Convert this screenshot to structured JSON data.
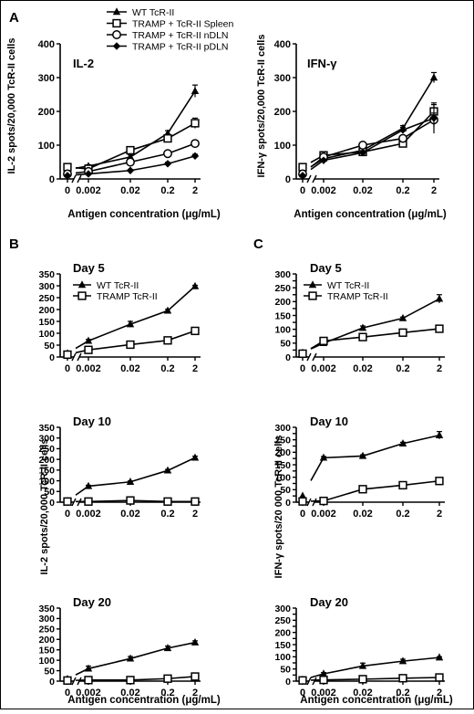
{
  "panel_letters": [
    "A",
    "B",
    "C"
  ],
  "figure_legends": {
    "A": [
      "WT TcR-II",
      "TRAMP + TcR-II Spleen",
      "TRAMP + TcR-II nDLN",
      "TRAMP + TcR-II pDLN"
    ],
    "BC": [
      "WT TcR-II",
      "TRAMP TcR-II"
    ]
  },
  "shared_ylabels": {
    "B": "IL-2 spots/20,000 TcR-II cells",
    "C": "IFN-γ spots/20 000 TcR-II cells"
  },
  "chart_data": [
    {
      "id": "A-IL2",
      "type": "line",
      "title": "IL-2",
      "xlabel": "Antigen concentration (μg/mL)",
      "ylabel": "IL-2 spots/20,000 TcR-II cells",
      "x_categories": [
        "0",
        "0.002",
        "0.02",
        "0.2",
        "2"
      ],
      "ylim": [
        0,
        400
      ],
      "yticks": [
        0,
        100,
        200,
        300,
        400
      ],
      "series": [
        {
          "name": "WT TcR-II",
          "marker": "triangle",
          "values": [
            28,
            38,
            65,
            135,
            260
          ],
          "errors": [
            0,
            4,
            6,
            8,
            18
          ]
        },
        {
          "name": "TRAMP + TcR-II Spleen",
          "marker": "square",
          "values": [
            35,
            30,
            85,
            120,
            165
          ],
          "errors": [
            0,
            4,
            8,
            10,
            15
          ]
        },
        {
          "name": "TRAMP + TcR-II nDLN",
          "marker": "circle",
          "values": [
            15,
            22,
            50,
            75,
            105
          ],
          "errors": [
            0,
            3,
            5,
            6,
            8
          ]
        },
        {
          "name": "TRAMP + TcR-II pDLN",
          "marker": "diamond",
          "values": [
            10,
            15,
            25,
            45,
            68
          ],
          "errors": [
            0,
            2,
            3,
            4,
            5
          ]
        }
      ]
    },
    {
      "id": "A-IFNg",
      "type": "line",
      "title": "IFN-γ",
      "xlabel": "Antigen concentration (μg/mL)",
      "ylabel": "IFN-γ spots/20,000 TcR-II cells",
      "x_categories": [
        "0",
        "0.002",
        "0.02",
        "0.2",
        "2"
      ],
      "ylim": [
        0,
        400
      ],
      "yticks": [
        0,
        100,
        200,
        300,
        400
      ],
      "series": [
        {
          "name": "WT TcR-II",
          "marker": "triangle",
          "values": [
            20,
            60,
            85,
            150,
            300
          ],
          "errors": [
            0,
            5,
            6,
            8,
            15
          ]
        },
        {
          "name": "TRAMP + TcR-II Spleen",
          "marker": "square",
          "values": [
            35,
            70,
            80,
            105,
            200
          ],
          "errors": [
            0,
            6,
            6,
            10,
            20
          ]
        },
        {
          "name": "TRAMP + TcR-II nDLN",
          "marker": "circle",
          "values": [
            15,
            65,
            100,
            120,
            175
          ],
          "errors": [
            0,
            5,
            6,
            8,
            20
          ]
        },
        {
          "name": "TRAMP + TcR-II pDLN",
          "marker": "diamond",
          "values": [
            10,
            55,
            78,
            145,
            180
          ],
          "errors": [
            0,
            4,
            6,
            8,
            45
          ]
        }
      ]
    },
    {
      "id": "B-day5",
      "type": "line",
      "title": "Day 5",
      "xlabel": "",
      "ylabel": "",
      "x_categories": [
        "0",
        "0.002",
        "0.02",
        "0.2",
        "2"
      ],
      "ylim": [
        0,
        350
      ],
      "yticks": [
        0,
        50,
        100,
        150,
        200,
        250,
        300,
        350
      ],
      "series": [
        {
          "name": "WT TcR-II",
          "marker": "triangle",
          "values": [
            15,
            68,
            138,
            195,
            298
          ],
          "errors": [
            0,
            6,
            12,
            6,
            4
          ]
        },
        {
          "name": "TRAMP TcR-II",
          "marker": "square",
          "values": [
            10,
            30,
            52,
            70,
            110
          ],
          "errors": [
            0,
            3,
            3,
            4,
            5
          ]
        }
      ]
    },
    {
      "id": "B-day10",
      "type": "line",
      "title": "Day 10",
      "xlabel": "",
      "ylabel": "",
      "x_categories": [
        "0",
        "0.002",
        "0.02",
        "0.2",
        "2"
      ],
      "ylim": [
        0,
        350
      ],
      "yticks": [
        0,
        50,
        100,
        150,
        200,
        250,
        300,
        350
      ],
      "series": [
        {
          "name": "WT TcR-II",
          "marker": "triangle",
          "values": [
            5,
            75,
            95,
            148,
            208
          ],
          "errors": [
            0,
            4,
            4,
            5,
            7
          ]
        },
        {
          "name": "TRAMP TcR-II",
          "marker": "square",
          "values": [
            3,
            3,
            8,
            3,
            3
          ],
          "errors": [
            0,
            1,
            3,
            1,
            1
          ]
        }
      ]
    },
    {
      "id": "B-day20",
      "type": "line",
      "title": "Day 20",
      "xlabel": "Antigen concentration (μg/mL)",
      "ylabel": "",
      "x_categories": [
        "0",
        "0.002",
        "0.02",
        "0.2",
        "2"
      ],
      "ylim": [
        0,
        350
      ],
      "yticks": [
        0,
        50,
        100,
        150,
        200,
        250,
        300,
        350
      ],
      "series": [
        {
          "name": "WT TcR-II",
          "marker": "triangle",
          "values": [
            10,
            60,
            108,
            158,
            185
          ],
          "errors": [
            0,
            12,
            10,
            10,
            8
          ]
        },
        {
          "name": "TRAMP TcR-II",
          "marker": "square",
          "values": [
            3,
            5,
            5,
            12,
            22
          ],
          "errors": [
            0,
            2,
            2,
            3,
            3
          ]
        }
      ]
    },
    {
      "id": "C-day5",
      "type": "line",
      "title": "Day 5",
      "xlabel": "",
      "ylabel": "",
      "x_categories": [
        "0",
        "0.002",
        "0.02",
        "0.2",
        "2"
      ],
      "ylim": [
        0,
        300
      ],
      "yticks": [
        0,
        25,
        50,
        75,
        100,
        125,
        150,
        175,
        200,
        225,
        250,
        275,
        300
      ],
      "series": [
        {
          "name": "WT TcR-II",
          "marker": "triangle",
          "values": [
            15,
            50,
            105,
            140,
            210
          ],
          "errors": [
            0,
            5,
            7,
            4,
            15
          ]
        },
        {
          "name": "TRAMP TcR-II",
          "marker": "square",
          "values": [
            12,
            58,
            72,
            88,
            102
          ],
          "errors": [
            0,
            8,
            10,
            5,
            10
          ]
        }
      ]
    },
    {
      "id": "C-day10",
      "type": "line",
      "title": "Day 10",
      "xlabel": "",
      "ylabel": "",
      "x_categories": [
        "0",
        "0.002",
        "0.02",
        "0.2",
        "2"
      ],
      "ylim": [
        0,
        300
      ],
      "yticks": [
        0,
        25,
        50,
        75,
        100,
        125,
        150,
        175,
        200,
        225,
        250,
        275,
        300
      ],
      "series": [
        {
          "name": "WT TcR-II",
          "marker": "triangle",
          "values": [
            25,
            178,
            185,
            235,
            268
          ],
          "errors": [
            0,
            5,
            5,
            5,
            15
          ]
        },
        {
          "name": "TRAMP TcR-II",
          "marker": "square",
          "values": [
            3,
            5,
            52,
            68,
            85
          ],
          "errors": [
            0,
            1,
            3,
            3,
            4
          ]
        }
      ]
    },
    {
      "id": "C-day20",
      "type": "line",
      "title": "Day 20",
      "xlabel": "Antigen concentration (μg/mL)",
      "ylabel": "",
      "x_categories": [
        "0",
        "0.002",
        "0.02",
        "0.2",
        "2"
      ],
      "ylim": [
        0,
        300
      ],
      "yticks": [
        0,
        25,
        50,
        75,
        100,
        125,
        150,
        175,
        200,
        225,
        250,
        275,
        300
      ],
      "series": [
        {
          "name": "WT TcR-II",
          "marker": "triangle",
          "values": [
            5,
            30,
            62,
            82,
            97
          ],
          "errors": [
            0,
            5,
            12,
            8,
            3
          ]
        },
        {
          "name": "TRAMP TcR-II",
          "marker": "square",
          "values": [
            3,
            5,
            8,
            12,
            15
          ],
          "errors": [
            0,
            1,
            2,
            2,
            2
          ]
        }
      ]
    }
  ]
}
